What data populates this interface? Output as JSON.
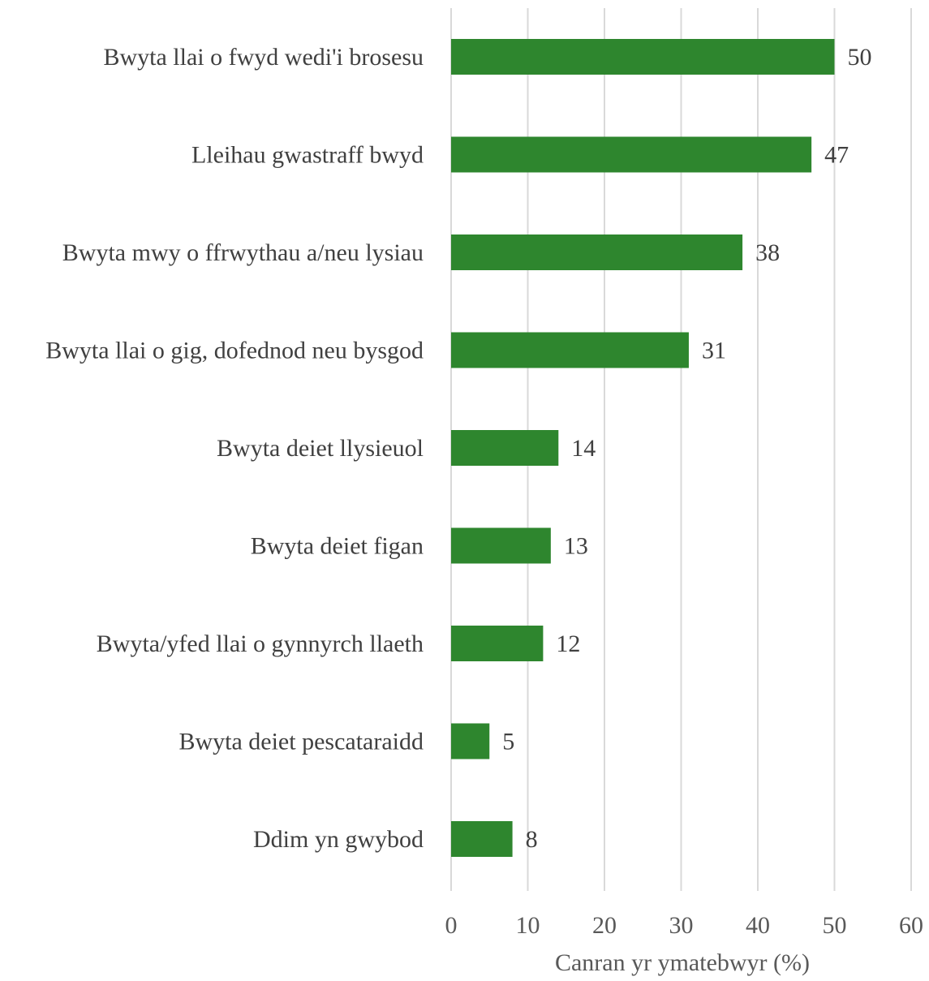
{
  "chart_data": {
    "type": "bar",
    "orientation": "horizontal",
    "categories": [
      "Bwyta llai o fwyd wedi'i brosesu",
      "Lleihau gwastraff bwyd",
      "Bwyta mwy o ffrwythau a/neu lysiau",
      "Bwyta llai o gig, dofednod neu bysgod",
      "Bwyta deiet llysieuol",
      "Bwyta deiet figan",
      "Bwyta/yfed llai o gynnyrch llaeth",
      "Bwyta deiet pescataraidd",
      "Ddim yn gwybod"
    ],
    "values": [
      50,
      47,
      38,
      31,
      14,
      13,
      12,
      5,
      8
    ],
    "data_labels": [
      "50",
      "47",
      "38",
      "31",
      "14",
      "13",
      "12",
      "5",
      "8"
    ],
    "title": "",
    "xlabel": "Canran yr ymatebwyr (%)",
    "ylabel": "",
    "xlim": [
      0,
      60
    ],
    "x_ticks": [
      0,
      10,
      20,
      30,
      40,
      50,
      60
    ],
    "x_tick_labels": [
      "0",
      "10",
      "20",
      "30",
      "40",
      "50",
      "60"
    ],
    "grid": "vertical",
    "legend": "none",
    "bar_color": "#2e862e"
  }
}
